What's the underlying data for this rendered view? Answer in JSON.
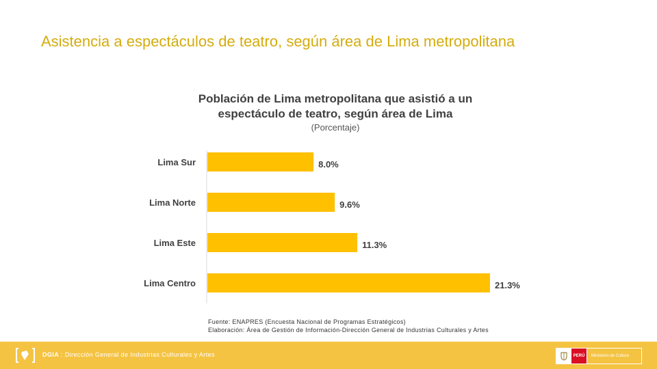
{
  "slide": {
    "title": "Asistencia a espectáculos de teatro, según área de Lima metropolitana"
  },
  "chart_data": {
    "type": "bar",
    "orientation": "horizontal",
    "title_line1": "Población de Lima metropolitana que asistió a un",
    "title_line2": "espectáculo de teatro, según área de Lima",
    "subtitle": "(Porcentaje)",
    "categories": [
      "Lima Sur",
      "Lima Norte",
      "Lima Este",
      "Lima Centro"
    ],
    "values": [
      8.0,
      9.6,
      11.3,
      21.3
    ],
    "value_labels": [
      "8.0%",
      "9.6%",
      "11.3%",
      "21.3%"
    ],
    "xlim": [
      0,
      21.3
    ],
    "bar_color": "#FFC000",
    "grid": false
  },
  "footnote": {
    "line1": "Fuente: ENAPRES (Encuesta Nacional de Programas Estratégicos)",
    "line2": "Elaboración: Área de Gestión de Información-Dirección General de Industrias Culturales y Artes"
  },
  "footer": {
    "org_short": "DGIA",
    "org_separator": " : ",
    "org_full": "Dirección General de Industrias Culturales y Artes",
    "country": "PERÚ",
    "ministry": "Ministerio de Cultura"
  },
  "colors": {
    "title": "#D4AC0D",
    "footer_bg": "#F5C342",
    "bar": "#FFC000"
  }
}
